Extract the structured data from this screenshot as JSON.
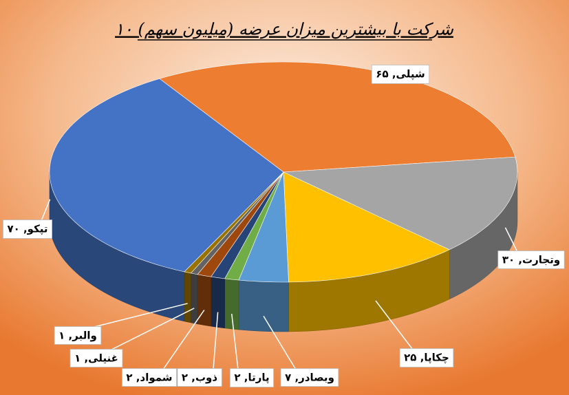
{
  "chart_data": {
    "type": "pie3d",
    "title": "۱۰ شرکت با بیشترین میزان عرضه (میلیون سهم)",
    "values": [
      65,
      30,
      25,
      7,
      2,
      2,
      2,
      1,
      1,
      70
    ],
    "value_labels": [
      "شپلی, ۶۵",
      "وتجارت, ۳۰",
      "چکاپا, ۲۵",
      "وبصادر, ۷",
      "پارتا, ۲",
      "ذوب, ۲",
      "شمواد, ۲",
      "غنیلی, ۱",
      "والبر, ۱",
      "تپکو, ۷۰"
    ],
    "colors": [
      "#ED7D31",
      "#A5A5A5",
      "#FFC000",
      "#5B9BD5",
      "#70AD47",
      "#264478",
      "#9E480E",
      "#636363",
      "#997300",
      "#4472C4"
    ]
  }
}
